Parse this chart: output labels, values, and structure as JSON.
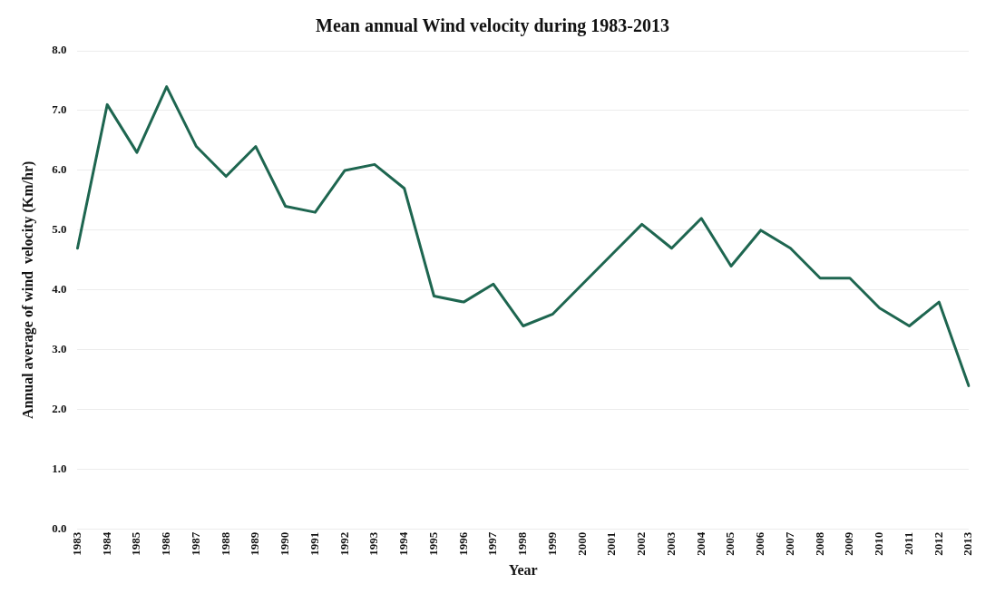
{
  "chart_data": {
    "type": "line",
    "title": "Mean annual Wind velocity during 1983-2013",
    "xlabel": "Year",
    "ylabel": "Annual average of wind  velocity (Km/hr)",
    "categories": [
      "1983",
      "1984",
      "1985",
      "1986",
      "1987",
      "1988",
      "1989",
      "1990",
      "1991",
      "1992",
      "1993",
      "1994",
      "1995",
      "1996",
      "1997",
      "1998",
      "1999",
      "2000",
      "2001",
      "2002",
      "2003",
      "2004",
      "2005",
      "2006",
      "2007",
      "2008",
      "2009",
      "2010",
      "2011",
      "2012",
      "2013"
    ],
    "series": [
      {
        "color": "#1e6650",
        "values": [
          4.7,
          7.1,
          6.3,
          7.4,
          6.4,
          5.9,
          6.4,
          5.4,
          5.3,
          6.0,
          6.1,
          5.7,
          3.9,
          3.8,
          4.1,
          3.4,
          3.6,
          4.1,
          4.6,
          5.1,
          4.7,
          5.2,
          4.4,
          5.0,
          4.7,
          4.2,
          4.2,
          3.7,
          3.4,
          3.8,
          2.4
        ]
      }
    ],
    "ylim": [
      0,
      8
    ],
    "yticks": [
      {
        "value": 0,
        "label": "0.0"
      },
      {
        "value": 1,
        "label": "1.0"
      },
      {
        "value": 2,
        "label": "2.0"
      },
      {
        "value": 3,
        "label": "3.0"
      },
      {
        "value": 4,
        "label": "4.0"
      },
      {
        "value": 5,
        "label": "5.0"
      },
      {
        "value": 6,
        "label": "6.0"
      },
      {
        "value": 7,
        "label": "7.0"
      },
      {
        "value": 8,
        "label": "8.0"
      }
    ],
    "grid": "y",
    "legend": false,
    "marker": "none",
    "line_style": "solid"
  }
}
